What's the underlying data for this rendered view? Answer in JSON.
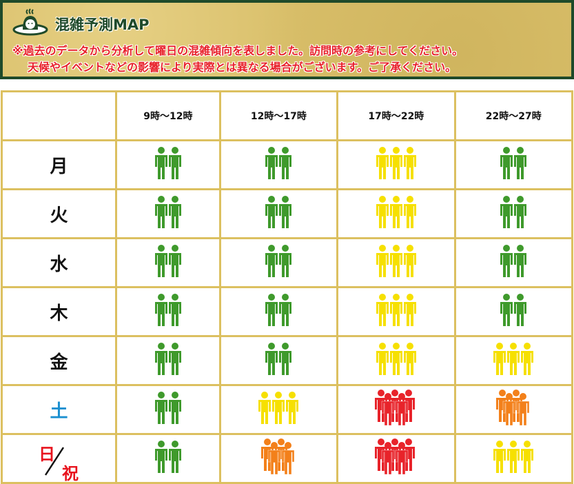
{
  "header": {
    "title": "混雑予測MAP",
    "note_line1": "※過去のデータから分析して曜日の混雑傾向を表しました。訪問時の参考にしてください。",
    "note_line2": "天候やイベントなどの影響により実際とは異なる場合がございます。ご了承ください。",
    "logo_icon": "onsen-mascot-icon"
  },
  "columns": [
    "9時～12時",
    "12時～17時",
    "17時～22時",
    "22時～27時"
  ],
  "colors": {
    "low": "#3f9a2c",
    "mid": "#f6e000",
    "high": "#f3801a",
    "very_high": "#e8232a"
  },
  "rows": [
    {
      "day": "月",
      "levels": [
        "low",
        "low",
        "mid",
        "low"
      ]
    },
    {
      "day": "火",
      "levels": [
        "low",
        "low",
        "mid",
        "low"
      ]
    },
    {
      "day": "水",
      "levels": [
        "low",
        "low",
        "mid",
        "low"
      ]
    },
    {
      "day": "木",
      "levels": [
        "low",
        "low",
        "mid",
        "low"
      ]
    },
    {
      "day": "金",
      "levels": [
        "low",
        "low",
        "mid",
        "mid"
      ]
    },
    {
      "day": "土",
      "levels": [
        "low",
        "mid",
        "very_high",
        "high"
      ]
    },
    {
      "day_top": "日",
      "day_bottom": "祝",
      "levels": [
        "low",
        "high",
        "very_high",
        "mid"
      ]
    }
  ]
}
